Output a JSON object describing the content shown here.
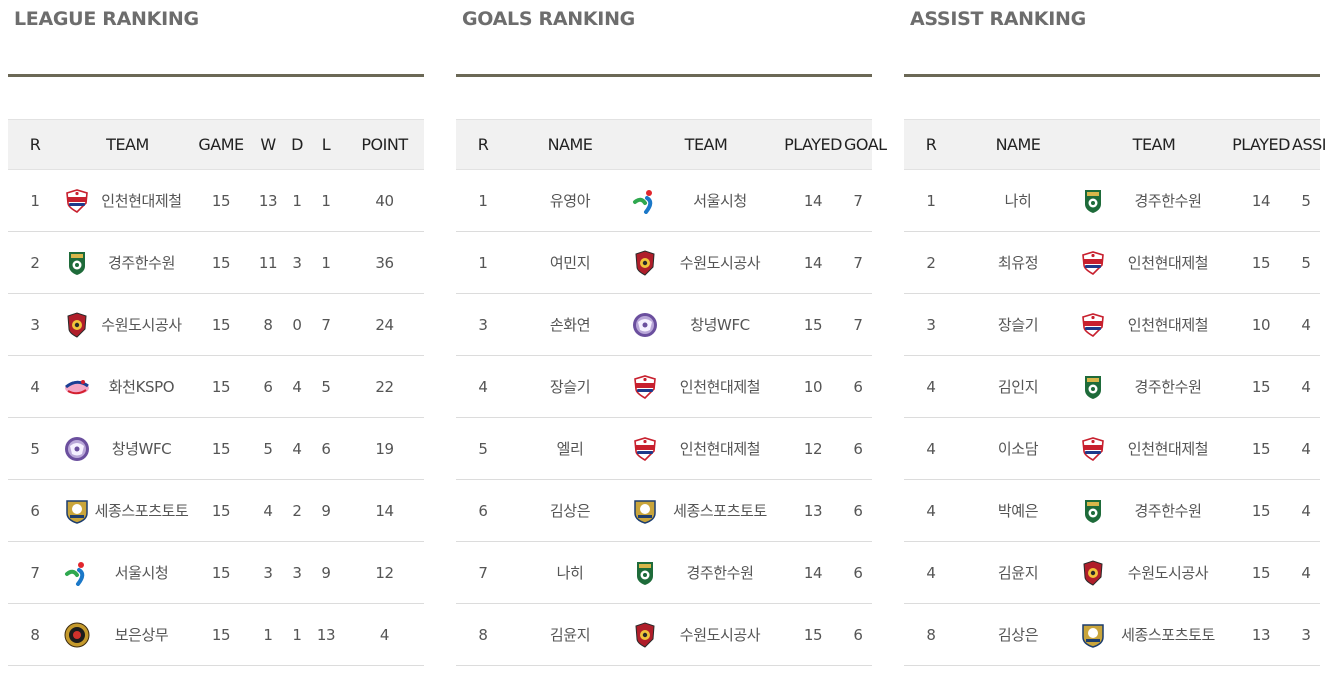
{
  "league": {
    "title": "LEAGUE RANKING",
    "headers": [
      "R",
      "TEAM",
      "GAME",
      "W",
      "D",
      "L",
      "POINT"
    ],
    "rows": [
      {
        "r": "1",
        "team": "인천현대제철",
        "logo": "red-angels-logo",
        "game": "15",
        "w": "13",
        "d": "1",
        "l": "1",
        "point": "40"
      },
      {
        "r": "2",
        "team": "경주한수원",
        "logo": "gyeongju-khnp-logo",
        "game": "15",
        "w": "11",
        "d": "3",
        "l": "1",
        "point": "36"
      },
      {
        "r": "3",
        "team": "수원도시공사",
        "logo": "suwon-udc-logo",
        "game": "15",
        "w": "8",
        "d": "0",
        "l": "7",
        "point": "24"
      },
      {
        "r": "4",
        "team": "화천KSPO",
        "logo": "hwacheon-kspo-logo",
        "game": "15",
        "w": "6",
        "d": "4",
        "l": "5",
        "point": "22"
      },
      {
        "r": "5",
        "team": "창녕WFC",
        "logo": "changnyeong-wfc-logo",
        "game": "15",
        "w": "5",
        "d": "4",
        "l": "6",
        "point": "19"
      },
      {
        "r": "6",
        "team": "세종스포츠토토",
        "logo": "sejong-sportstoto-logo",
        "game": "15",
        "w": "4",
        "d": "2",
        "l": "9",
        "point": "14"
      },
      {
        "r": "7",
        "team": "서울시청",
        "logo": "seoul-city-logo",
        "game": "15",
        "w": "3",
        "d": "3",
        "l": "9",
        "point": "12"
      },
      {
        "r": "8",
        "team": "보은상무",
        "logo": "boeun-sangmu-logo",
        "game": "15",
        "w": "1",
        "d": "1",
        "l": "13",
        "point": "4"
      }
    ]
  },
  "goals": {
    "title": "GOALS RANKING",
    "headers": [
      "R",
      "NAME",
      "TEAM",
      "PLAYED",
      "GOAL"
    ],
    "rows": [
      {
        "r": "1",
        "name": "유영아",
        "team": "서울시청",
        "logo": "seoul-city-logo",
        "played": "14",
        "value": "7"
      },
      {
        "r": "1",
        "name": "여민지",
        "team": "수원도시공사",
        "logo": "suwon-udc-logo",
        "played": "14",
        "value": "7"
      },
      {
        "r": "3",
        "name": "손화연",
        "team": "창녕WFC",
        "logo": "changnyeong-wfc-logo",
        "played": "15",
        "value": "7"
      },
      {
        "r": "4",
        "name": "장슬기",
        "team": "인천현대제철",
        "logo": "red-angels-logo",
        "played": "10",
        "value": "6"
      },
      {
        "r": "5",
        "name": "엘리",
        "team": "인천현대제철",
        "logo": "red-angels-logo",
        "played": "12",
        "value": "6"
      },
      {
        "r": "6",
        "name": "김상은",
        "team": "세종스포츠토토",
        "logo": "sejong-sportstoto-logo",
        "played": "13",
        "value": "6"
      },
      {
        "r": "7",
        "name": "나히",
        "team": "경주한수원",
        "logo": "gyeongju-khnp-logo",
        "played": "14",
        "value": "6"
      },
      {
        "r": "8",
        "name": "김윤지",
        "team": "수원도시공사",
        "logo": "suwon-udc-logo",
        "played": "15",
        "value": "6"
      }
    ]
  },
  "assist": {
    "title": "ASSIST RANKING",
    "headers": [
      "R",
      "NAME",
      "TEAM",
      "PLAYED",
      "ASSIST"
    ],
    "rows": [
      {
        "r": "1",
        "name": "나히",
        "team": "경주한수원",
        "logo": "gyeongju-khnp-logo",
        "played": "14",
        "value": "5"
      },
      {
        "r": "2",
        "name": "최유정",
        "team": "인천현대제철",
        "logo": "red-angels-logo",
        "played": "15",
        "value": "5"
      },
      {
        "r": "3",
        "name": "장슬기",
        "team": "인천현대제철",
        "logo": "red-angels-logo",
        "played": "10",
        "value": "4"
      },
      {
        "r": "4",
        "name": "김인지",
        "team": "경주한수원",
        "logo": "gyeongju-khnp-logo",
        "played": "15",
        "value": "4"
      },
      {
        "r": "4",
        "name": "이소담",
        "team": "인천현대제철",
        "logo": "red-angels-logo",
        "played": "15",
        "value": "4"
      },
      {
        "r": "4",
        "name": "박예은",
        "team": "경주한수원",
        "logo": "gyeongju-khnp-logo",
        "played": "15",
        "value": "4"
      },
      {
        "r": "4",
        "name": "김윤지",
        "team": "수원도시공사",
        "logo": "suwon-udc-logo",
        "played": "15",
        "value": "4"
      },
      {
        "r": "8",
        "name": "김상은",
        "team": "세종스포츠토토",
        "logo": "sejong-sportstoto-logo",
        "played": "13",
        "value": "3"
      }
    ]
  },
  "colors": {
    "title": "#6d6d6d",
    "rule": "#6b6856",
    "header_bg": "#f1f1f1"
  }
}
